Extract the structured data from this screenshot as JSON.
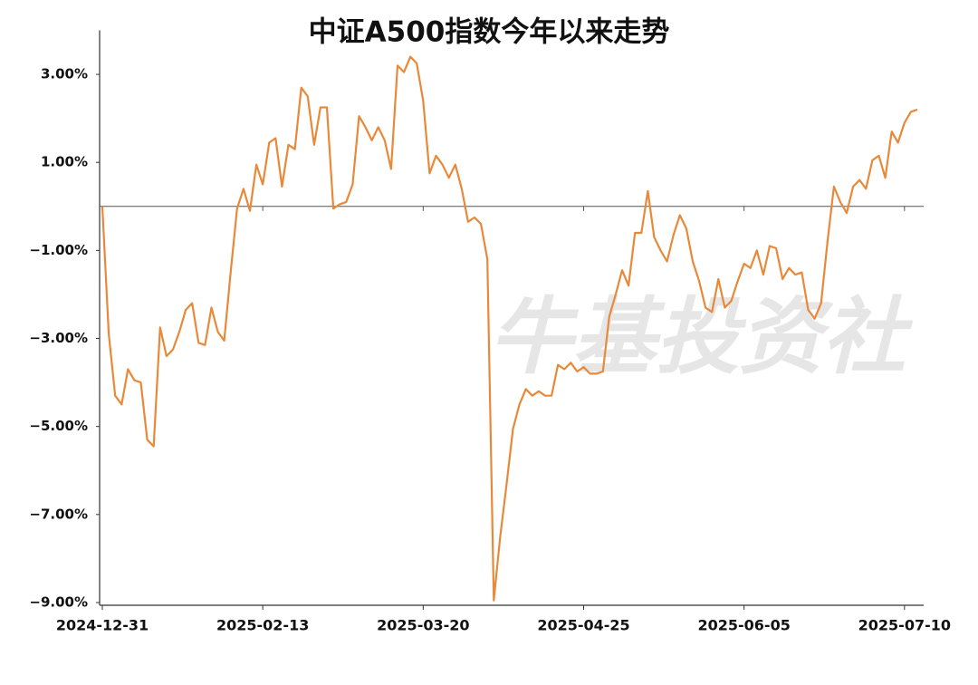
{
  "chart_data": {
    "type": "line",
    "title": "中证A500指数今年以来走势",
    "watermark": "牛基投资社",
    "categories": [
      "2024-12-31",
      null,
      null,
      null,
      null,
      null,
      null,
      null,
      null,
      null,
      null,
      null,
      null,
      null,
      null,
      null,
      null,
      null,
      null,
      null,
      null,
      null,
      null,
      null,
      null,
      "2025-02-13",
      null,
      null,
      null,
      null,
      null,
      null,
      null,
      null,
      null,
      null,
      null,
      null,
      null,
      null,
      null,
      null,
      null,
      null,
      null,
      null,
      null,
      null,
      null,
      null,
      "2025-03-20",
      null,
      null,
      null,
      null,
      null,
      null,
      null,
      null,
      null,
      null,
      null,
      null,
      null,
      null,
      null,
      null,
      null,
      null,
      null,
      null,
      null,
      null,
      null,
      null,
      "2025-04-25",
      null,
      null,
      null,
      null,
      null,
      null,
      null,
      null,
      null,
      null,
      null,
      null,
      null,
      null,
      null,
      null,
      null,
      null,
      null,
      null,
      null,
      null,
      null,
      null,
      "2025-06-05",
      null,
      null,
      null,
      null,
      null,
      null,
      null,
      null,
      null,
      null,
      null,
      null,
      null,
      null,
      null,
      null,
      null,
      null,
      null,
      null,
      null,
      null,
      null,
      null,
      "2025-07-10",
      null,
      null
    ],
    "series": [
      {
        "color": "#e8893a",
        "values": [
          0,
          -2.9,
          -4.3,
          -4.5,
          -3.7,
          -3.95,
          -4.0,
          -5.3,
          -5.45,
          -2.75,
          -3.4,
          -3.25,
          -2.85,
          -2.35,
          -2.2,
          -3.1,
          -3.15,
          -2.3,
          -2.85,
          -3.05,
          -1.5,
          -0.05,
          0.4,
          -0.1,
          0.95,
          0.5,
          1.45,
          1.55,
          0.45,
          1.4,
          1.3,
          2.7,
          2.5,
          1.4,
          2.25,
          2.25,
          -0.05,
          0.05,
          0.1,
          0.5,
          2.05,
          1.8,
          1.5,
          1.8,
          1.5,
          0.85,
          3.2,
          3.05,
          3.4,
          3.25,
          2.4,
          0.75,
          1.15,
          0.95,
          0.65,
          0.95,
          0.4,
          -0.35,
          -0.25,
          -0.4,
          -1.2,
          -8.95,
          -7.5,
          -6.3,
          -5.05,
          -4.5,
          -4.15,
          -4.3,
          -4.2,
          -4.3,
          -4.3,
          -3.6,
          -3.7,
          -3.55,
          -3.75,
          -3.65,
          -3.8,
          -3.8,
          -3.75,
          -2.5,
          -2.0,
          -1.45,
          -1.8,
          -0.6,
          -0.6,
          0.35,
          -0.7,
          -1.0,
          -1.25,
          -0.65,
          -0.2,
          -0.5,
          -1.25,
          -1.7,
          -2.3,
          -2.4,
          -1.65,
          -2.3,
          -2.15,
          -1.7,
          -1.3,
          -1.4,
          -1.0,
          -1.55,
          -0.9,
          -0.95,
          -1.65,
          -1.4,
          -1.55,
          -1.5,
          -2.35,
          -2.55,
          -2.2,
          -0.8,
          0.45,
          0.1,
          -0.15,
          0.45,
          0.6,
          0.4,
          1.05,
          1.15,
          0.65,
          1.7,
          1.45,
          1.9,
          2.15,
          2.2
        ]
      }
    ],
    "ylim": [
      -9,
      4
    ],
    "yticks": [
      {
        "value": 3,
        "label": "3.00%"
      },
      {
        "value": 1,
        "label": "1.00%"
      },
      {
        "value": -1,
        "label": "−1.00%"
      },
      {
        "value": -3,
        "label": "−3.00%"
      },
      {
        "value": -5,
        "label": "−5.00%"
      },
      {
        "value": -7,
        "label": "−7.00%"
      },
      {
        "value": -9,
        "label": "−9.00%"
      }
    ]
  }
}
